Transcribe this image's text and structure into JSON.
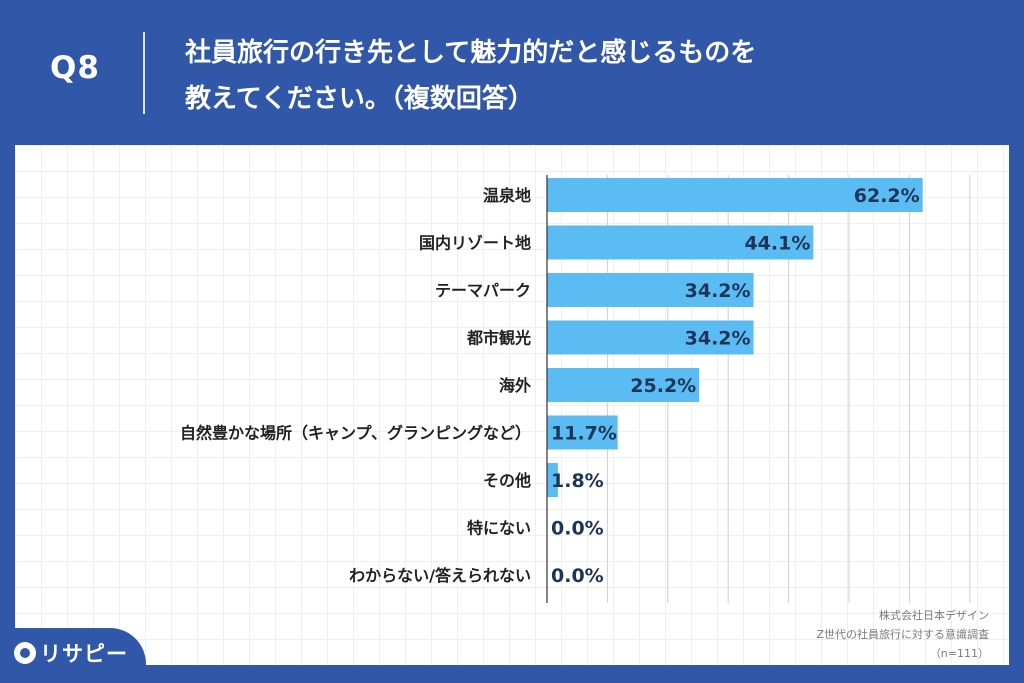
{
  "header": {
    "q_number": "Q8",
    "question_line1": "社員旅行の行き先として魅力的だと感じるものを",
    "question_line2": "教えてください。（複数回答）"
  },
  "chart_data": {
    "type": "bar",
    "orientation": "horizontal",
    "categories": [
      "温泉地",
      "国内リゾート地",
      "テーマパーク",
      "都市観光",
      "海外",
      "自然豊かな場所（キャンプ、グランピングなど）",
      "その他",
      "特にない",
      "わからない/答えられない"
    ],
    "values": [
      62.2,
      44.1,
      34.2,
      34.2,
      25.2,
      11.7,
      1.8,
      0.0,
      0.0
    ],
    "value_labels": [
      "62.2%",
      "44.1%",
      "34.2%",
      "34.2%",
      "25.2%",
      "11.7%",
      "1.8%",
      "0.0%",
      "0.0%"
    ],
    "xlim": [
      0,
      70
    ],
    "unit": "%",
    "bar_color": "#5bbcf3",
    "grid": true
  },
  "source": {
    "company": "株式会社日本デザイン",
    "survey": "Z世代の社員旅行に対する意識調査",
    "sample": "（n=111）"
  },
  "brand": {
    "logo_text": "リサピー",
    "logo_icon": "location-pin-icon"
  },
  "colors": {
    "background": "#3157a8",
    "card": "#ffffff",
    "bar": "#5bbcf3",
    "value_text": "#1d3557"
  }
}
